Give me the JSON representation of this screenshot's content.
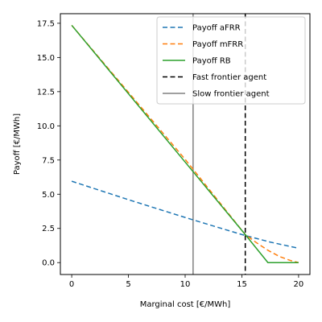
{
  "chart_data": {
    "type": "line",
    "xlabel": "Marginal cost [€/MWh]",
    "ylabel": "Payoff [€/MWh]",
    "xlim": [
      -1,
      21
    ],
    "ylim": [
      -0.87,
      18.2
    ],
    "xticks": [
      "0",
      "5",
      "10",
      "15",
      "20"
    ],
    "yticks": [
      "0.0",
      "2.5",
      "5.0",
      "7.5",
      "10.0",
      "12.5",
      "15.0",
      "17.5"
    ],
    "grid": false,
    "legend_position": "top-right",
    "series": [
      {
        "name": "Payoff aFRR",
        "style": "dashed",
        "color": "#1f77b4",
        "x": [
          0,
          5,
          10,
          15,
          17.5,
          20
        ],
        "y": [
          5.95,
          4.6,
          3.3,
          2.05,
          1.5,
          1.05
        ]
      },
      {
        "name": "Payoff mFRR",
        "style": "dashed",
        "color": "#ff7f0e",
        "x": [
          0,
          5,
          10,
          15.3,
          16.3,
          17.3,
          18.3,
          19.3,
          20
        ],
        "y": [
          17.35,
          12.45,
          7.55,
          2.05,
          1.45,
          0.9,
          0.45,
          0.15,
          0.0
        ]
      },
      {
        "name": "Payoff RB",
        "style": "solid",
        "color": "#2ca02c",
        "x": [
          0,
          15.3,
          17.3,
          20
        ],
        "y": [
          17.35,
          2.05,
          0.0,
          0.0
        ]
      }
    ],
    "vlines": [
      {
        "name": "Fast frontier agent",
        "x": 15.3,
        "style": "dashed",
        "color": "#000000"
      },
      {
        "name": "Slow frontier agent",
        "x": 10.7,
        "style": "solid",
        "color": "#808080"
      }
    ]
  }
}
